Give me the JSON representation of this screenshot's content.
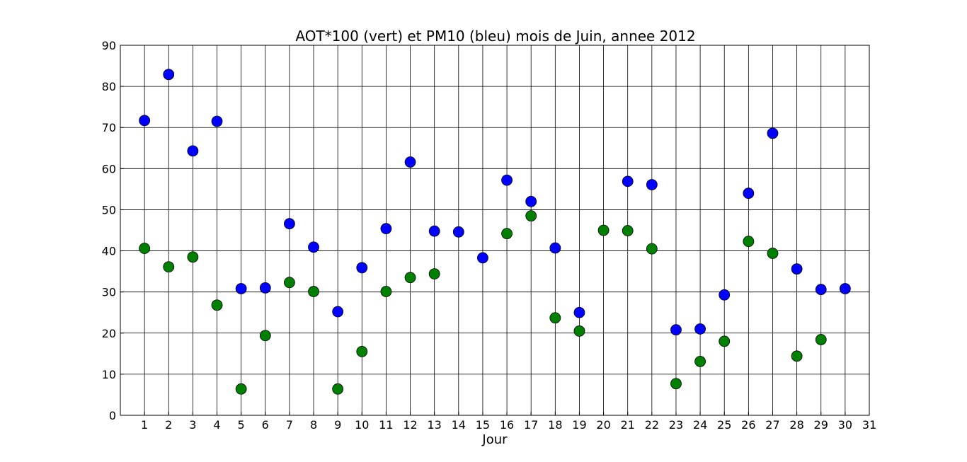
{
  "chart_data": {
    "type": "scatter",
    "title": "AOT*100 (vert) et PM10 (bleu) mois de Juin, annee 2012",
    "xlabel": "Jour",
    "ylabel": "",
    "xlim": [
      0,
      31
    ],
    "ylim": [
      0,
      90
    ],
    "x_ticks": [
      1,
      2,
      3,
      4,
      5,
      6,
      7,
      8,
      9,
      10,
      11,
      12,
      13,
      14,
      15,
      16,
      17,
      18,
      19,
      20,
      21,
      22,
      23,
      24,
      25,
      26,
      27,
      28,
      29,
      30,
      31
    ],
    "y_ticks": [
      0,
      10,
      20,
      30,
      40,
      50,
      60,
      70,
      80,
      90
    ],
    "grid": true,
    "series": [
      {
        "color": "#0000ff",
        "points": [
          [
            1,
            71.7
          ],
          [
            2,
            82.9
          ],
          [
            3,
            64.3
          ],
          [
            4,
            71.5
          ],
          [
            5,
            30.8
          ],
          [
            6,
            31.0
          ],
          [
            7,
            46.6
          ],
          [
            8,
            40.9
          ],
          [
            9,
            25.2
          ],
          [
            10,
            35.9
          ],
          [
            11,
            45.4
          ],
          [
            12,
            61.6
          ],
          [
            13,
            44.8
          ],
          [
            14,
            44.6
          ],
          [
            15,
            38.3
          ],
          [
            16,
            57.2
          ],
          [
            17,
            52.0
          ],
          [
            18,
            40.7
          ],
          [
            19,
            25.0
          ],
          [
            21,
            56.9
          ],
          [
            22,
            56.1
          ],
          [
            23,
            20.8
          ],
          [
            24,
            21.0
          ],
          [
            25,
            29.3
          ],
          [
            26,
            54.0
          ],
          [
            27,
            68.6
          ],
          [
            28,
            35.6
          ],
          [
            29,
            30.6
          ],
          [
            30,
            30.8
          ]
        ]
      },
      {
        "color": "#008000",
        "points": [
          [
            1,
            40.6
          ],
          [
            2,
            36.1
          ],
          [
            3,
            38.5
          ],
          [
            4,
            26.8
          ],
          [
            5,
            6.4
          ],
          [
            6,
            19.4
          ],
          [
            7,
            32.3
          ],
          [
            8,
            30.1
          ],
          [
            9,
            6.4
          ],
          [
            10,
            15.5
          ],
          [
            11,
            30.1
          ],
          [
            12,
            33.5
          ],
          [
            13,
            34.4
          ],
          [
            16,
            44.2
          ],
          [
            17,
            48.5
          ],
          [
            18,
            23.7
          ],
          [
            19,
            20.5
          ],
          [
            20,
            45.0
          ],
          [
            21,
            44.9
          ],
          [
            22,
            40.5
          ],
          [
            23,
            7.7
          ],
          [
            24,
            13.1
          ],
          [
            25,
            18.0
          ],
          [
            26,
            42.3
          ],
          [
            27,
            39.4
          ],
          [
            28,
            14.4
          ],
          [
            29,
            18.4
          ]
        ]
      }
    ]
  }
}
